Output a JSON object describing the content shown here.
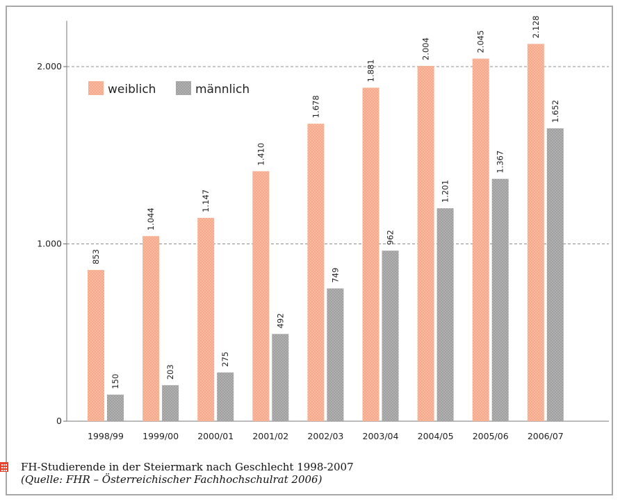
{
  "chart_data": {
    "type": "bar",
    "categories": [
      "1998/99",
      "1999/00",
      "2000/01",
      "2001/02",
      "2002/03",
      "2003/04",
      "2004/05",
      "2005/06",
      "2006/07"
    ],
    "series": [
      {
        "name": "weiblich",
        "values": [
          853,
          1044,
          1147,
          1410,
          1678,
          1881,
          2004,
          2045,
          2128
        ],
        "labels": [
          "853",
          "1.044",
          "1.147",
          "1.410",
          "1.678",
          "1.881",
          "2.004",
          "2.045",
          "2.128"
        ],
        "color": "#f5a98a"
      },
      {
        "name": "männlich",
        "values": [
          150,
          203,
          275,
          492,
          749,
          962,
          1201,
          1367,
          1652
        ],
        "labels": [
          "150",
          "203",
          "275",
          "492",
          "749",
          "962",
          "1.201",
          "1.367",
          "1.652"
        ],
        "color": "#9e9e9e"
      }
    ],
    "ylim": [
      0,
      2000
    ],
    "yticks": [
      0,
      1000,
      2000
    ],
    "ytick_labels": [
      "0",
      "1.000",
      "2.000"
    ],
    "grid": "dashed horizontal",
    "legend_position": "top-left",
    "title": "",
    "xlabel": "",
    "ylabel": ""
  },
  "caption": {
    "line1": "FH-Studierende in der Steiermark nach Geschlecht 1998-2007",
    "line2": "(Quelle: FHR – Österreichischer Fachhochschulrat 2006)"
  }
}
